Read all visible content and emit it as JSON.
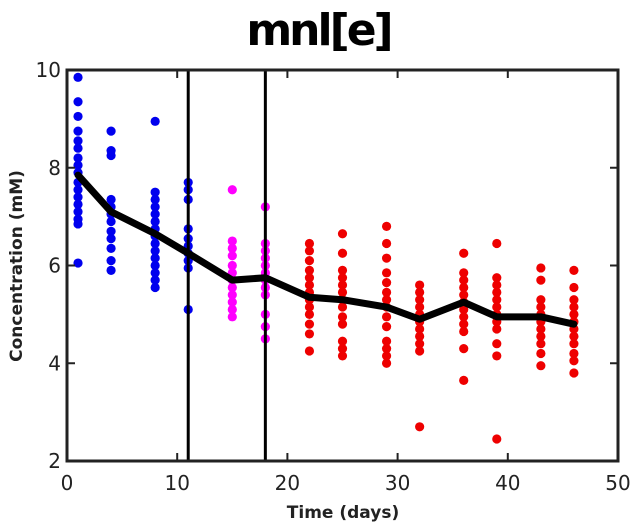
{
  "chart_data": {
    "type": "scatter",
    "title": "mnl[e]",
    "xlabel": "Time (days)",
    "ylabel": "Concentration (mM)",
    "xlim": [
      0,
      50
    ],
    "ylim": [
      2,
      10
    ],
    "xticks": [
      0,
      10,
      20,
      30,
      40,
      50
    ],
    "yticks": [
      2,
      4,
      6,
      8,
      10
    ],
    "xtick_labels": [
      "0",
      "10",
      "20",
      "30",
      "40",
      "50"
    ],
    "ytick_labels": [
      "2",
      "4",
      "6",
      "8",
      "10"
    ],
    "grid": false,
    "vertical_lines_x": [
      11,
      18
    ],
    "colors": {
      "blue": "#0000ee",
      "magenta": "#ff00ff",
      "red": "#ee0000",
      "line": "#000000"
    },
    "series": [
      {
        "color": "blue",
        "points": [
          [
            1,
            9.85
          ],
          [
            1,
            9.35
          ],
          [
            1,
            9.05
          ],
          [
            1,
            8.75
          ],
          [
            1,
            8.55
          ],
          [
            1,
            8.4
          ],
          [
            1,
            8.2
          ],
          [
            1,
            8.05
          ],
          [
            1,
            7.9
          ],
          [
            1,
            7.7
          ],
          [
            1,
            7.55
          ],
          [
            1,
            7.4
          ],
          [
            1,
            7.25
          ],
          [
            1,
            7.1
          ],
          [
            1,
            6.95
          ],
          [
            1,
            6.85
          ],
          [
            1,
            6.05
          ],
          [
            4,
            8.75
          ],
          [
            4,
            8.35
          ],
          [
            4,
            8.25
          ],
          [
            4,
            7.35
          ],
          [
            4,
            7.2
          ],
          [
            4,
            7.05
          ],
          [
            4,
            6.9
          ],
          [
            4,
            6.7
          ],
          [
            4,
            6.55
          ],
          [
            4,
            6.35
          ],
          [
            4,
            6.1
          ],
          [
            4,
            5.9
          ],
          [
            8,
            8.95
          ],
          [
            8,
            7.5
          ],
          [
            8,
            7.35
          ],
          [
            8,
            7.2
          ],
          [
            8,
            7.05
          ],
          [
            8,
            6.9
          ],
          [
            8,
            6.75
          ],
          [
            8,
            6.6
          ],
          [
            8,
            6.45
          ],
          [
            8,
            6.3
          ],
          [
            8,
            6.15
          ],
          [
            8,
            6.0
          ],
          [
            8,
            5.85
          ],
          [
            8,
            5.7
          ],
          [
            8,
            5.55
          ],
          [
            11,
            7.7
          ],
          [
            11,
            7.55
          ],
          [
            11,
            7.35
          ],
          [
            11,
            6.75
          ],
          [
            11,
            6.55
          ],
          [
            11,
            6.4
          ],
          [
            11,
            6.25
          ],
          [
            11,
            6.1
          ],
          [
            11,
            5.95
          ],
          [
            11,
            5.1
          ]
        ]
      },
      {
        "color": "magenta",
        "points": [
          [
            15,
            7.55
          ],
          [
            15,
            6.5
          ],
          [
            15,
            6.35
          ],
          [
            15,
            6.2
          ],
          [
            15,
            6.0
          ],
          [
            15,
            5.85
          ],
          [
            15,
            5.7
          ],
          [
            15,
            5.55
          ],
          [
            15,
            5.4
          ],
          [
            15,
            5.25
          ],
          [
            15,
            5.1
          ],
          [
            15,
            4.95
          ],
          [
            18,
            7.2
          ],
          [
            18,
            6.45
          ],
          [
            18,
            6.3
          ],
          [
            18,
            6.15
          ],
          [
            18,
            6.0
          ],
          [
            18,
            5.85
          ],
          [
            18,
            5.7
          ],
          [
            18,
            5.55
          ],
          [
            18,
            5.4
          ],
          [
            18,
            5.0
          ],
          [
            18,
            4.75
          ],
          [
            18,
            4.5
          ]
        ]
      },
      {
        "color": "red",
        "points": [
          [
            22,
            6.45
          ],
          [
            22,
            6.3
          ],
          [
            22,
            6.1
          ],
          [
            22,
            5.9
          ],
          [
            22,
            5.75
          ],
          [
            22,
            5.6
          ],
          [
            22,
            5.45
          ],
          [
            22,
            5.3
          ],
          [
            22,
            5.15
          ],
          [
            22,
            5.0
          ],
          [
            22,
            4.8
          ],
          [
            22,
            4.6
          ],
          [
            22,
            4.25
          ],
          [
            25,
            6.65
          ],
          [
            25,
            6.25
          ],
          [
            25,
            5.9
          ],
          [
            25,
            5.75
          ],
          [
            25,
            5.6
          ],
          [
            25,
            5.45
          ],
          [
            25,
            5.3
          ],
          [
            25,
            5.15
          ],
          [
            25,
            4.95
          ],
          [
            25,
            4.8
          ],
          [
            25,
            4.45
          ],
          [
            25,
            4.3
          ],
          [
            25,
            4.15
          ],
          [
            29,
            6.8
          ],
          [
            29,
            6.45
          ],
          [
            29,
            6.15
          ],
          [
            29,
            5.85
          ],
          [
            29,
            5.65
          ],
          [
            29,
            5.45
          ],
          [
            29,
            5.3
          ],
          [
            29,
            5.15
          ],
          [
            29,
            4.95
          ],
          [
            29,
            4.75
          ],
          [
            29,
            4.45
          ],
          [
            29,
            4.3
          ],
          [
            29,
            4.15
          ],
          [
            29,
            4.0
          ],
          [
            32,
            5.6
          ],
          [
            32,
            5.45
          ],
          [
            32,
            5.3
          ],
          [
            32,
            5.15
          ],
          [
            32,
            5.0
          ],
          [
            32,
            4.85
          ],
          [
            32,
            4.7
          ],
          [
            32,
            4.55
          ],
          [
            32,
            4.4
          ],
          [
            32,
            4.25
          ],
          [
            32,
            2.7
          ],
          [
            36,
            6.25
          ],
          [
            36,
            5.85
          ],
          [
            36,
            5.7
          ],
          [
            36,
            5.55
          ],
          [
            36,
            5.4
          ],
          [
            36,
            5.25
          ],
          [
            36,
            5.1
          ],
          [
            36,
            4.95
          ],
          [
            36,
            4.8
          ],
          [
            36,
            4.65
          ],
          [
            36,
            4.3
          ],
          [
            36,
            3.65
          ],
          [
            39,
            6.45
          ],
          [
            39,
            5.75
          ],
          [
            39,
            5.6
          ],
          [
            39,
            5.45
          ],
          [
            39,
            5.3
          ],
          [
            39,
            5.15
          ],
          [
            39,
            5.0
          ],
          [
            39,
            4.85
          ],
          [
            39,
            4.7
          ],
          [
            39,
            4.4
          ],
          [
            39,
            4.15
          ],
          [
            39,
            2.45
          ],
          [
            43,
            5.95
          ],
          [
            43,
            5.7
          ],
          [
            43,
            5.3
          ],
          [
            43,
            5.15
          ],
          [
            43,
            5.0
          ],
          [
            43,
            4.85
          ],
          [
            43,
            4.7
          ],
          [
            43,
            4.55
          ],
          [
            43,
            4.4
          ],
          [
            43,
            4.2
          ],
          [
            43,
            3.95
          ],
          [
            46,
            5.9
          ],
          [
            46,
            5.55
          ],
          [
            46,
            5.3
          ],
          [
            46,
            5.15
          ],
          [
            46,
            5.0
          ],
          [
            46,
            4.85
          ],
          [
            46,
            4.7
          ],
          [
            46,
            4.55
          ],
          [
            46,
            4.4
          ],
          [
            46,
            4.2
          ],
          [
            46,
            4.05
          ],
          [
            46,
            3.8
          ]
        ]
      }
    ],
    "mean_line": {
      "color": "line",
      "points": [
        [
          1,
          7.85
        ],
        [
          4,
          7.1
        ],
        [
          8,
          6.65
        ],
        [
          11,
          6.25
        ],
        [
          15,
          5.7
        ],
        [
          18,
          5.75
        ],
        [
          22,
          5.35
        ],
        [
          25,
          5.3
        ],
        [
          29,
          5.15
        ],
        [
          32,
          4.9
        ],
        [
          36,
          5.25
        ],
        [
          39,
          4.95
        ],
        [
          43,
          4.95
        ],
        [
          46,
          4.8
        ]
      ]
    }
  }
}
